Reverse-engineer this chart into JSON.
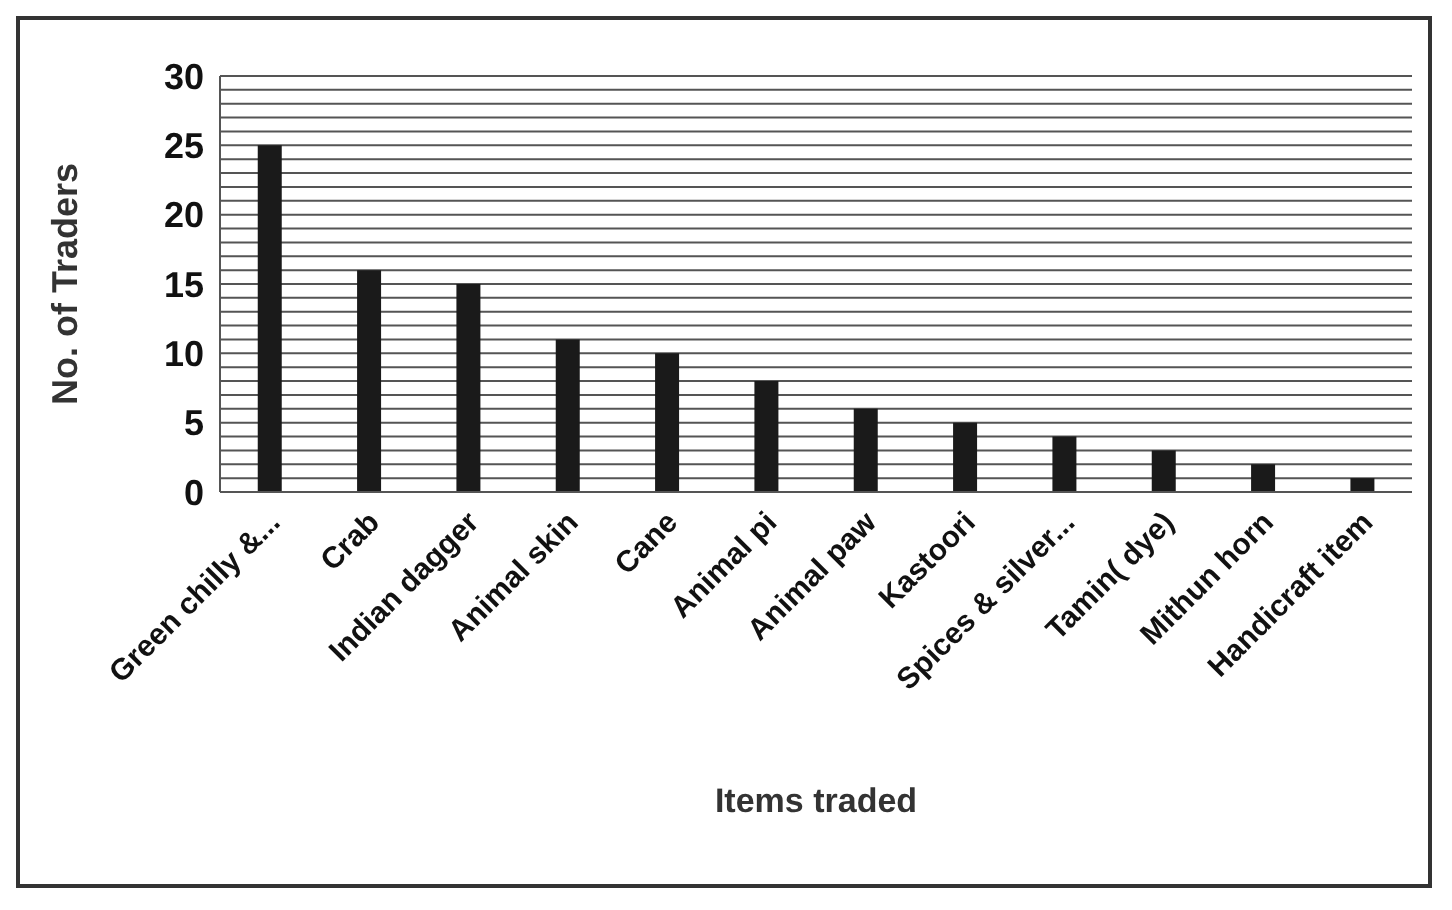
{
  "chart_data": {
    "type": "bar",
    "xlabel": "Items traded",
    "ylabel": "No. of  Traders",
    "categories": [
      "Green chilly &...",
      "Crab",
      "Indian dagger",
      "Animal skin",
      "Cane",
      "Animal pi",
      "Animal paw",
      "Kastoori",
      "Spices & silver...",
      "Tamin( dye)",
      "Mithun horn",
      "Handicraft item"
    ],
    "values": [
      25,
      16,
      15,
      11,
      10,
      8,
      6,
      5,
      4,
      3,
      2,
      1
    ],
    "color": "#1a1a1a",
    "ylim": [
      0,
      30
    ],
    "yticks": [
      0,
      {
        "value": 1,
        "label": null
      },
      {
        "value": 2,
        "label": null
      },
      {
        "value": 3,
        "label": null
      },
      {
        "value": 4,
        "label": null
      },
      5,
      {
        "value": 6,
        "label": null
      },
      {
        "value": 7,
        "label": null
      },
      {
        "value": 8,
        "label": null
      },
      {
        "value": 9,
        "label": null
      },
      10,
      {
        "value": 11,
        "label": null
      },
      {
        "value": 12,
        "label": null
      },
      {
        "value": 13,
        "label": null
      },
      {
        "value": 14,
        "label": null
      },
      15,
      {
        "value": 16,
        "label": null
      },
      {
        "value": 17,
        "label": null
      },
      {
        "value": 18,
        "label": null
      },
      {
        "value": 19,
        "label": null
      },
      20,
      {
        "value": 21,
        "label": null
      },
      {
        "value": 22,
        "label": null
      },
      {
        "value": 23,
        "label": null
      },
      {
        "value": 24,
        "label": null
      },
      25,
      {
        "value": 26,
        "label": null
      },
      {
        "value": 27,
        "label": null
      },
      {
        "value": 28,
        "label": null
      },
      {
        "value": 29,
        "label": null
      },
      30
    ],
    "grid": "y",
    "legend": false
  }
}
